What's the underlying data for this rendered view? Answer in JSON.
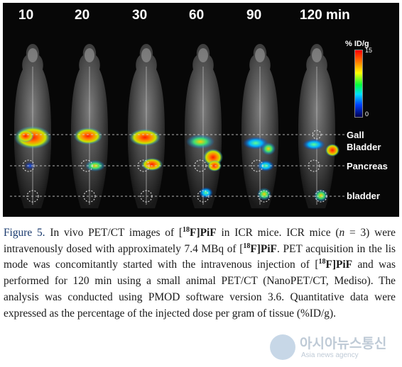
{
  "figure": {
    "time_points": [
      "10",
      "20",
      "30",
      "60",
      "90",
      "120 min"
    ],
    "colorbar": {
      "title": "% ID/g",
      "max": "15",
      "min": "0"
    },
    "organ_labels": {
      "gall": "Gall",
      "bladder_upper": "Bladder",
      "pancreas": "Pancreas",
      "bladder": "bladder"
    }
  },
  "caption": {
    "label": "Figure 5.",
    "t1": " In vivo PET/CT images of [",
    "iso1": "18",
    "c1": "F]PiF",
    "t2": " in ICR mice. ICR mice (",
    "n": "n",
    "t3": " = 3) were intravenously dosed with approximately 7.4 MBq of [",
    "iso2": "18",
    "c2": "F]PiF",
    "t4": ". PET acquisition in the lis mode was concomitantly started with the intravenous injection of [",
    "iso3": "18",
    "c3": "F]PiF",
    "t5": " and was performed for 120 min using a small animal PET/CT (NanoPET/CT, Mediso). The analysis was conducted using PMOD software version 3.6. Quantitative data were expressed as the percentage of the injected dose per gram of tissue (%ID/g)."
  },
  "watermark": {
    "title": "아시아뉴스통신",
    "subtitle": "Asia news agency"
  },
  "colors": {
    "figure_label": "#1a3a6e",
    "panel_background": "#070707"
  }
}
